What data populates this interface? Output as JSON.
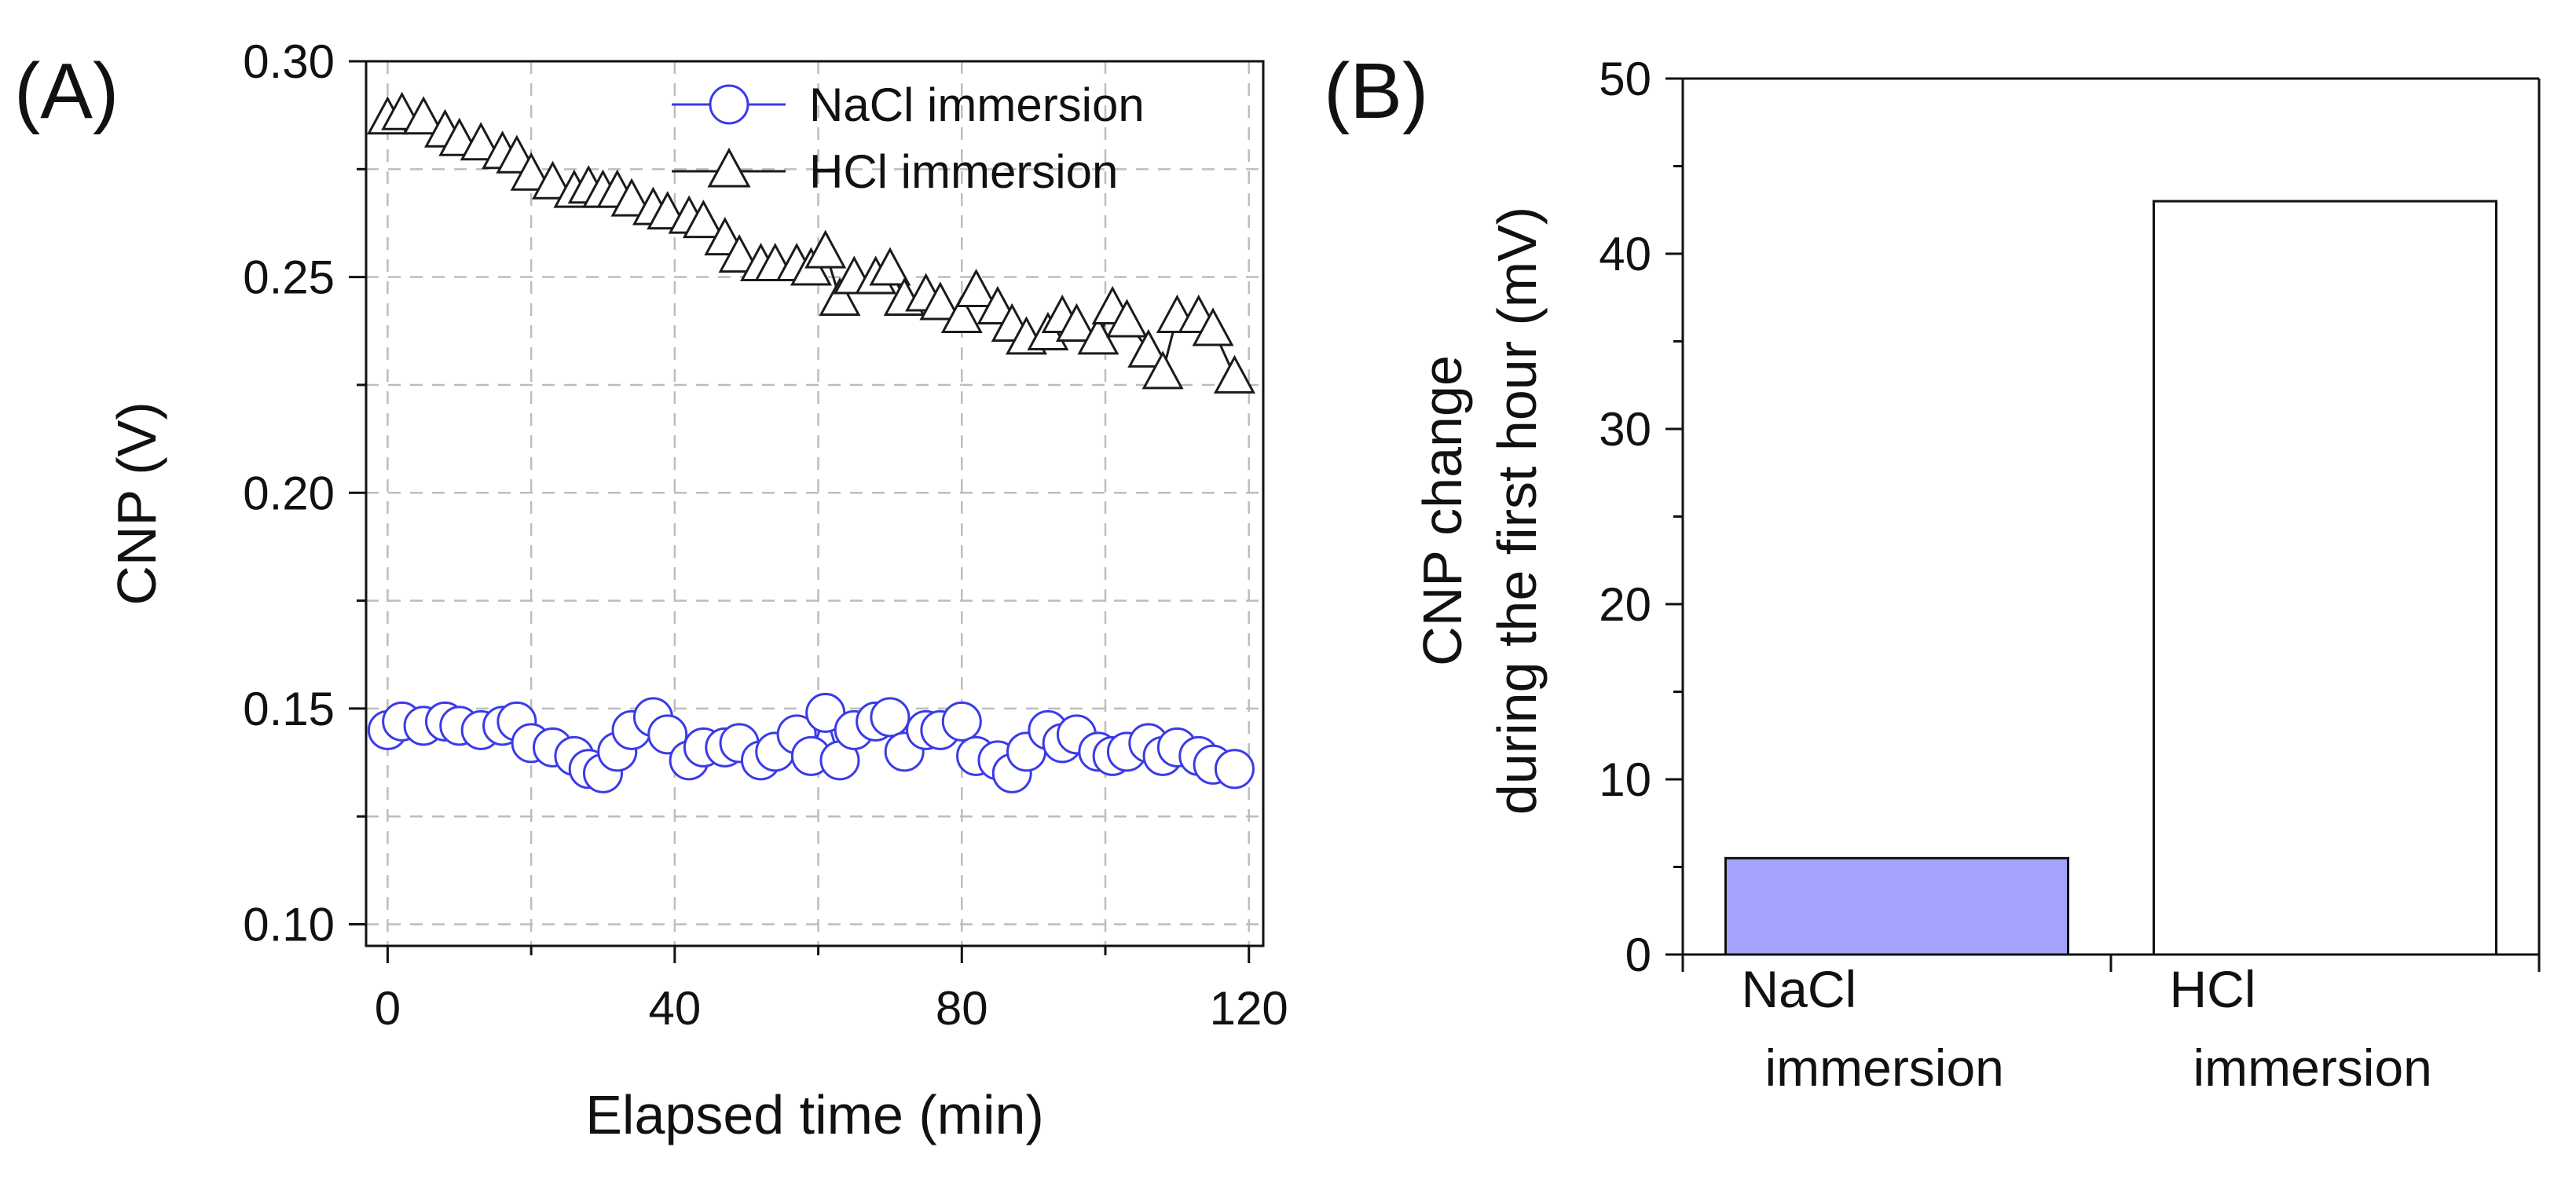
{
  "chart_data": [
    {
      "panel_label": "(A)",
      "type": "scatter",
      "xlabel": "Elapsed time (min)",
      "ylabel": "CNP (V)",
      "xlim": [
        -3,
        122
      ],
      "ylim": [
        0.095,
        0.3
      ],
      "xticks": [
        0,
        40,
        80,
        120
      ],
      "xtick_labels": [
        "0",
        "40",
        "80",
        "120"
      ],
      "yticks": [
        0.1,
        0.15,
        0.2,
        0.25,
        0.3
      ],
      "ytick_labels": [
        "0.10",
        "0.15",
        "0.20",
        "0.25",
        "0.30"
      ],
      "grid": true,
      "legend_position": "top-right",
      "series": [
        {
          "name": "NaCl immersion",
          "marker": "circle",
          "color": "#3a3ae8",
          "x": [
            0,
            2,
            5,
            8,
            10,
            13,
            16,
            18,
            20,
            23,
            26,
            28,
            30,
            32,
            34,
            37,
            39,
            42,
            44,
            47,
            49,
            52,
            54,
            57,
            59,
            61,
            63,
            65,
            68,
            70,
            72,
            75,
            77,
            80,
            82,
            85,
            87,
            89,
            92,
            94,
            96,
            99,
            101,
            103,
            106,
            108,
            110,
            113,
            115,
            118
          ],
          "y": [
            0.145,
            0.147,
            0.146,
            0.147,
            0.146,
            0.145,
            0.146,
            0.147,
            0.142,
            0.141,
            0.139,
            0.136,
            0.135,
            0.14,
            0.145,
            0.148,
            0.144,
            0.138,
            0.141,
            0.141,
            0.142,
            0.138,
            0.14,
            0.144,
            0.139,
            0.149,
            0.138,
            0.145,
            0.147,
            0.148,
            0.14,
            0.145,
            0.145,
            0.147,
            0.139,
            0.138,
            0.135,
            0.14,
            0.145,
            0.142,
            0.144,
            0.14,
            0.139,
            0.14,
            0.142,
            0.139,
            0.141,
            0.139,
            0.137,
            0.136
          ]
        },
        {
          "name": "HCl immersion",
          "marker": "triangle",
          "color": "#1a1a1a",
          "x": [
            0,
            2,
            5,
            8,
            10,
            13,
            16,
            18,
            20,
            23,
            26,
            28,
            30,
            32,
            34,
            37,
            39,
            42,
            44,
            47,
            49,
            52,
            54,
            57,
            59,
            61,
            63,
            65,
            68,
            70,
            72,
            75,
            77,
            80,
            82,
            85,
            87,
            89,
            92,
            94,
            96,
            99,
            101,
            103,
            106,
            108,
            110,
            113,
            115,
            118
          ],
          "y": [
            0.287,
            0.288,
            0.287,
            0.284,
            0.282,
            0.281,
            0.279,
            0.278,
            0.274,
            0.272,
            0.27,
            0.271,
            0.27,
            0.27,
            0.268,
            0.266,
            0.265,
            0.264,
            0.263,
            0.259,
            0.255,
            0.253,
            0.253,
            0.253,
            0.252,
            0.256,
            0.245,
            0.25,
            0.25,
            0.252,
            0.245,
            0.246,
            0.244,
            0.241,
            0.247,
            0.243,
            0.239,
            0.236,
            0.237,
            0.241,
            0.239,
            0.236,
            0.243,
            0.24,
            0.233,
            0.228,
            0.241,
            0.241,
            0.238,
            0.227
          ]
        }
      ]
    },
    {
      "panel_label": "(B)",
      "type": "bar",
      "ylabel_lines": [
        "CNP change",
        "during the first hour (mV)"
      ],
      "ylim": [
        0,
        50
      ],
      "yticks": [
        0,
        10,
        20,
        30,
        40,
        50
      ],
      "ytick_labels": [
        "0",
        "10",
        "20",
        "30",
        "40",
        "50"
      ],
      "categories": [
        {
          "lines": [
            "NaCl",
            "immersion"
          ]
        },
        {
          "lines": [
            "HCl",
            "immersion"
          ]
        }
      ],
      "values": [
        5.5,
        43.0
      ],
      "bar_colors": [
        "#a3a3fb",
        "#ffffff"
      ]
    }
  ]
}
